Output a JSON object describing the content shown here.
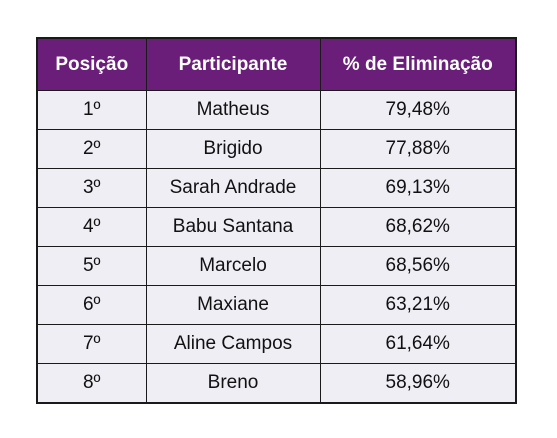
{
  "table": {
    "headers": [
      "Posição",
      "Participante",
      "% de Eliminação"
    ],
    "rows": [
      [
        "1º",
        "Matheus",
        "79,48%"
      ],
      [
        "2º",
        "Brigido",
        "77,88%"
      ],
      [
        "3º",
        "Sarah Andrade",
        "69,13%"
      ],
      [
        "4º",
        "Babu Santana",
        "68,62%"
      ],
      [
        "5º",
        "Marcelo",
        "68,56%"
      ],
      [
        "6º",
        "Maxiane",
        "63,21%"
      ],
      [
        "7º",
        "Aline Campos",
        "61,64%"
      ],
      [
        "8º",
        "Breno",
        "58,96%"
      ]
    ]
  },
  "colors": {
    "header_bg": "#6b1d7a",
    "header_text": "#ffffff",
    "row_bg": "#eeeef4",
    "border": "#1a1a1a"
  }
}
